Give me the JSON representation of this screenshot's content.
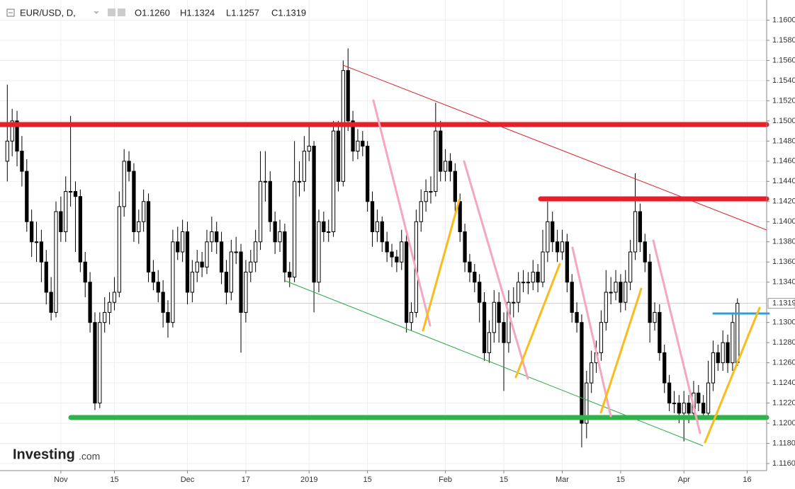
{
  "chart_data": {
    "type": "candlestick",
    "header": {
      "symbol": "EUR/USD, D,",
      "open": "O1.1260",
      "high": "H1.1324",
      "low": "L1.1257",
      "close": "C1.1319"
    },
    "watermark_brand": "Investing",
    "watermark_domain": ".com",
    "last_price": 1.1319,
    "xlim": [
      -1.5,
      156
    ],
    "xticks": [
      {
        "value": 11,
        "label": "Nov"
      },
      {
        "value": 22,
        "label": "15"
      },
      {
        "value": 37,
        "label": "Dec"
      },
      {
        "value": 49,
        "label": "17"
      },
      {
        "value": 62,
        "label": "2019"
      },
      {
        "value": 74,
        "label": "15"
      },
      {
        "value": 90,
        "label": "Feb"
      },
      {
        "value": 102,
        "label": "15"
      },
      {
        "value": 114,
        "label": "Mar"
      },
      {
        "value": 126,
        "label": "15"
      },
      {
        "value": 139,
        "label": "Apr"
      },
      {
        "value": 152,
        "label": "16"
      }
    ],
    "ylim": [
      1.1153,
      1.162
    ],
    "yticks": [
      {
        "value": 1.116,
        "label": "1.1160"
      },
      {
        "value": 1.118,
        "label": "1.1180"
      },
      {
        "value": 1.12,
        "label": "1.1200"
      },
      {
        "value": 1.122,
        "label": "1.1220"
      },
      {
        "value": 1.124,
        "label": "1.1240"
      },
      {
        "value": 1.126,
        "label": "1.1260"
      },
      {
        "value": 1.128,
        "label": "1.1280"
      },
      {
        "value": 1.13,
        "label": "1.1300"
      },
      {
        "value": 1.134,
        "label": "1.1340"
      },
      {
        "value": 1.136,
        "label": "1.1360"
      },
      {
        "value": 1.138,
        "label": "1.1380"
      },
      {
        "value": 1.14,
        "label": "1.1400"
      },
      {
        "value": 1.142,
        "label": "1.1420"
      },
      {
        "value": 1.144,
        "label": "1.1440"
      },
      {
        "value": 1.146,
        "label": "1.1460"
      },
      {
        "value": 1.148,
        "label": "1.1480"
      },
      {
        "value": 1.15,
        "label": "1.1500"
      },
      {
        "value": 1.152,
        "label": "1.1520"
      },
      {
        "value": 1.154,
        "label": "1.1540"
      },
      {
        "value": 1.156,
        "label": "1.1560"
      },
      {
        "value": 1.158,
        "label": "1.1580"
      },
      {
        "value": 1.16,
        "label": "1.1600"
      }
    ],
    "candles": [
      [
        1.146,
        1.1536,
        1.144,
        1.148
      ],
      [
        1.148,
        1.1512,
        1.1465,
        1.15
      ],
      [
        1.15,
        1.151,
        1.1455,
        1.147
      ],
      [
        1.147,
        1.1485,
        1.1435,
        1.145
      ],
      [
        1.145,
        1.1462,
        1.139,
        1.14
      ],
      [
        1.14,
        1.1412,
        1.1365,
        1.138
      ],
      [
        1.138,
        1.14,
        1.136,
        1.138
      ],
      [
        1.138,
        1.1392,
        1.134,
        1.136
      ],
      [
        1.136,
        1.1372,
        1.1318,
        1.133
      ],
      [
        1.133,
        1.1345,
        1.1302,
        1.131
      ],
      [
        1.131,
        1.142,
        1.1305,
        1.141
      ],
      [
        1.141,
        1.1425,
        1.138,
        1.139
      ],
      [
        1.139,
        1.1445,
        1.138,
        1.143
      ],
      [
        1.143,
        1.1505,
        1.1415,
        1.143
      ],
      [
        1.143,
        1.144,
        1.137,
        1.1425
      ],
      [
        1.1425,
        1.1432,
        1.135,
        1.136
      ],
      [
        1.136,
        1.137,
        1.1325,
        1.134
      ],
      [
        1.134,
        1.135,
        1.129,
        1.13
      ],
      [
        1.13,
        1.131,
        1.1213,
        1.122
      ],
      [
        1.122,
        1.131,
        1.1215,
        1.13
      ],
      [
        1.13,
        1.1325,
        1.129,
        1.131
      ],
      [
        1.131,
        1.133,
        1.1298,
        1.132
      ],
      [
        1.132,
        1.1345,
        1.1312,
        1.133
      ],
      [
        1.133,
        1.143,
        1.1325,
        1.1415
      ],
      [
        1.1415,
        1.1472,
        1.1405,
        1.146
      ],
      [
        1.146,
        1.147,
        1.144,
        1.145
      ],
      [
        1.145,
        1.1458,
        1.138,
        1.139
      ],
      [
        1.139,
        1.1412,
        1.1378,
        1.14
      ],
      [
        1.14,
        1.1432,
        1.139,
        1.142
      ],
      [
        1.142,
        1.1428,
        1.134,
        1.135
      ],
      [
        1.135,
        1.1362,
        1.1332,
        1.134
      ],
      [
        1.134,
        1.1352,
        1.132,
        1.133
      ],
      [
        1.133,
        1.1342,
        1.1295,
        1.131
      ],
      [
        1.131,
        1.1322,
        1.1285,
        1.13
      ],
      [
        1.13,
        1.1392,
        1.1295,
        1.138
      ],
      [
        1.138,
        1.1395,
        1.1362,
        1.137
      ],
      [
        1.137,
        1.1402,
        1.136,
        1.139
      ],
      [
        1.139,
        1.14,
        1.1318,
        1.133
      ],
      [
        1.133,
        1.1362,
        1.132,
        1.135
      ],
      [
        1.135,
        1.1372,
        1.134,
        1.136
      ],
      [
        1.136,
        1.137,
        1.1345,
        1.1355
      ],
      [
        1.1355,
        1.1392,
        1.1348,
        1.138
      ],
      [
        1.138,
        1.1405,
        1.137,
        1.139
      ],
      [
        1.139,
        1.14,
        1.1368,
        1.138
      ],
      [
        1.138,
        1.139,
        1.1338,
        1.135
      ],
      [
        1.135,
        1.1362,
        1.1318,
        1.133
      ],
      [
        1.133,
        1.1382,
        1.1322,
        1.137
      ],
      [
        1.137,
        1.1385,
        1.1358,
        1.137
      ],
      [
        1.137,
        1.1378,
        1.127,
        1.131
      ],
      [
        1.131,
        1.1362,
        1.13,
        1.135
      ],
      [
        1.135,
        1.1372,
        1.134,
        1.136
      ],
      [
        1.136,
        1.1392,
        1.135,
        1.138
      ],
      [
        1.138,
        1.147,
        1.1372,
        1.144
      ],
      [
        1.144,
        1.147,
        1.142,
        1.144
      ],
      [
        1.144,
        1.145,
        1.139,
        1.14
      ],
      [
        1.14,
        1.141,
        1.1368,
        1.138
      ],
      [
        1.138,
        1.1402,
        1.137,
        1.139
      ],
      [
        1.139,
        1.1398,
        1.134,
        1.135
      ],
      [
        1.135,
        1.136,
        1.1335,
        1.1345
      ],
      [
        1.1345,
        1.148,
        1.134,
        1.144
      ],
      [
        1.144,
        1.146,
        1.1425,
        1.144
      ],
      [
        1.144,
        1.1485,
        1.143,
        1.147
      ],
      [
        1.147,
        1.1495,
        1.146,
        1.1475
      ],
      [
        1.1475,
        1.148,
        1.131,
        1.134
      ],
      [
        1.134,
        1.1412,
        1.133,
        1.14
      ],
      [
        1.14,
        1.141,
        1.138,
        1.139
      ],
      [
        1.139,
        1.1402,
        1.138,
        1.139
      ],
      [
        1.139,
        1.15,
        1.1385,
        1.149
      ],
      [
        1.149,
        1.15,
        1.143,
        1.144
      ],
      [
        1.144,
        1.156,
        1.1435,
        1.155
      ],
      [
        1.155,
        1.1572,
        1.149,
        1.15
      ],
      [
        1.15,
        1.151,
        1.146,
        1.147
      ],
      [
        1.147,
        1.1492,
        1.1462,
        1.148
      ],
      [
        1.148,
        1.149,
        1.1465,
        1.1475
      ],
      [
        1.1475,
        1.148,
        1.141,
        1.142
      ],
      [
        1.142,
        1.143,
        1.1375,
        1.139
      ],
      [
        1.139,
        1.1412,
        1.138,
        1.14
      ],
      [
        1.14,
        1.1405,
        1.137,
        1.138
      ],
      [
        1.138,
        1.139,
        1.136,
        1.137
      ],
      [
        1.137,
        1.1378,
        1.1355,
        1.1365
      ],
      [
        1.1365,
        1.1372,
        1.135,
        1.136
      ],
      [
        1.136,
        1.1392,
        1.1352,
        1.138
      ],
      [
        1.138,
        1.139,
        1.129,
        1.13
      ],
      [
        1.13,
        1.132,
        1.1292,
        1.131
      ],
      [
        1.131,
        1.1412,
        1.1305,
        1.14
      ],
      [
        1.14,
        1.1432,
        1.139,
        1.142
      ],
      [
        1.142,
        1.1442,
        1.141,
        1.143
      ],
      [
        1.143,
        1.1445,
        1.1418,
        1.143
      ],
      [
        1.143,
        1.1518,
        1.1425,
        1.149
      ],
      [
        1.149,
        1.15,
        1.144,
        1.145
      ],
      [
        1.145,
        1.1472,
        1.144,
        1.146
      ],
      [
        1.146,
        1.1468,
        1.144,
        1.145
      ],
      [
        1.145,
        1.1458,
        1.141,
        1.142
      ],
      [
        1.142,
        1.1428,
        1.138,
        1.139
      ],
      [
        1.139,
        1.1398,
        1.135,
        1.136
      ],
      [
        1.136,
        1.1368,
        1.134,
        1.135
      ],
      [
        1.135,
        1.1358,
        1.133,
        1.134
      ],
      [
        1.134,
        1.1348,
        1.13,
        1.132
      ],
      [
        1.132,
        1.133,
        1.1262,
        1.127
      ],
      [
        1.127,
        1.1302,
        1.126,
        1.129
      ],
      [
        1.129,
        1.1332,
        1.128,
        1.132
      ],
      [
        1.132,
        1.133,
        1.128,
        1.13
      ],
      [
        1.13,
        1.131,
        1.1232,
        1.128
      ],
      [
        1.128,
        1.1332,
        1.127,
        1.132
      ],
      [
        1.132,
        1.1335,
        1.1305,
        1.132
      ],
      [
        1.132,
        1.135,
        1.131,
        1.134
      ],
      [
        1.134,
        1.1352,
        1.133,
        1.134
      ],
      [
        1.134,
        1.135,
        1.1328,
        1.134
      ],
      [
        1.134,
        1.1362,
        1.1332,
        1.135
      ],
      [
        1.135,
        1.1358,
        1.133,
        1.134
      ],
      [
        1.134,
        1.1392,
        1.1335,
        1.137
      ],
      [
        1.137,
        1.142,
        1.136,
        1.14
      ],
      [
        1.14,
        1.141,
        1.137,
        1.138
      ],
      [
        1.138,
        1.1392,
        1.136,
        1.137
      ],
      [
        1.137,
        1.1392,
        1.1362,
        1.138
      ],
      [
        1.138,
        1.1388,
        1.133,
        1.134
      ],
      [
        1.134,
        1.1348,
        1.13,
        1.131
      ],
      [
        1.131,
        1.132,
        1.129,
        1.13
      ],
      [
        1.13,
        1.1308,
        1.1176,
        1.12
      ],
      [
        1.12,
        1.1252,
        1.1185,
        1.124
      ],
      [
        1.124,
        1.1272,
        1.123,
        1.126
      ],
      [
        1.126,
        1.1282,
        1.125,
        1.127
      ],
      [
        1.127,
        1.1312,
        1.1262,
        1.13
      ],
      [
        1.13,
        1.1352,
        1.1292,
        1.133
      ],
      [
        1.133,
        1.1345,
        1.1318,
        1.133
      ],
      [
        1.133,
        1.1352,
        1.1322,
        1.134
      ],
      [
        1.134,
        1.1348,
        1.131,
        1.132
      ],
      [
        1.132,
        1.1352,
        1.1312,
        1.134
      ],
      [
        1.134,
        1.1382,
        1.1332,
        1.137
      ],
      [
        1.137,
        1.1448,
        1.1362,
        1.141
      ],
      [
        1.141,
        1.1418,
        1.137,
        1.138
      ],
      [
        1.138,
        1.1388,
        1.135,
        1.136
      ],
      [
        1.136,
        1.1368,
        1.128,
        1.13
      ],
      [
        1.13,
        1.132,
        1.1292,
        1.131
      ],
      [
        1.131,
        1.1318,
        1.1262,
        1.127
      ],
      [
        1.127,
        1.1278,
        1.123,
        1.124
      ],
      [
        1.124,
        1.1248,
        1.1212,
        1.122
      ],
      [
        1.122,
        1.1232,
        1.121,
        1.122
      ],
      [
        1.122,
        1.1228,
        1.12,
        1.121
      ],
      [
        1.121,
        1.1232,
        1.1182,
        1.122
      ],
      [
        1.122,
        1.1228,
        1.12,
        1.121
      ],
      [
        1.121,
        1.1242,
        1.1205,
        1.123
      ],
      [
        1.123,
        1.1238,
        1.1212,
        1.122
      ],
      [
        1.122,
        1.1228,
        1.1205,
        1.121
      ],
      [
        1.121,
        1.1262,
        1.1205,
        1.124
      ],
      [
        1.124,
        1.1282,
        1.1232,
        1.127
      ],
      [
        1.127,
        1.1278,
        1.1252,
        1.126
      ],
      [
        1.126,
        1.1292,
        1.1252,
        1.128
      ],
      [
        1.128,
        1.1288,
        1.125,
        1.126
      ],
      [
        1.126,
        1.131,
        1.1252,
        1.13
      ],
      [
        1.126,
        1.1324,
        1.1257,
        1.1319
      ]
    ]
  }
}
